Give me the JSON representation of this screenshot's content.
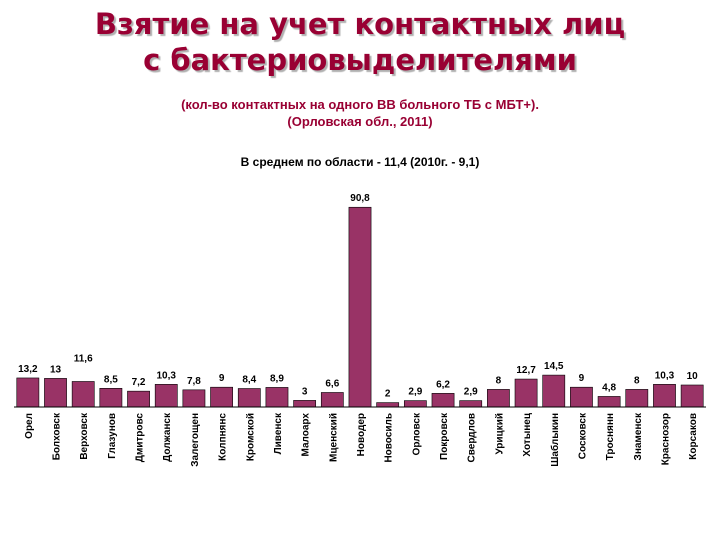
{
  "title_line1": "Взятие на учет контактных лиц",
  "title_line2": "с бактериовыделителями",
  "subtitle_line1": "(кол-во контактных на одного ВВ больного ТБ с МБТ+).",
  "subtitle_line2": "(Орловская обл., 2011)",
  "average_note": "В среднем по области - 11,4 (2010г. - 9,1)",
  "colors": {
    "bar": "#993366",
    "title": "#990033"
  },
  "chart_data": {
    "type": "bar",
    "categories": [
      "Орел",
      "Болховск",
      "Верховск",
      "Глазунов",
      "Дмитровс",
      "Должанск",
      "Залегощен",
      "Колпнянс",
      "Кромской",
      "Ливенск",
      "Малоарх",
      "Мценский",
      "Новодер",
      "Новосиль",
      "Орловск",
      "Покровск",
      "Свердлов",
      "Урицкий",
      "Хотынец",
      "Шаблыкин",
      "Сосковск",
      "Троснянн",
      "Знаменск",
      "Краснозор",
      "Корсаков"
    ],
    "values": [
      13.2,
      13,
      11.6,
      8.5,
      7.2,
      10.3,
      7.8,
      9,
      8.4,
      8.9,
      3,
      6.6,
      90.8,
      2,
      2.9,
      6.2,
      2.9,
      8,
      12.7,
      14.5,
      9,
      4.8,
      8,
      10.3,
      10
    ],
    "labels": [
      "13,2",
      "13",
      "11,6",
      "8,5",
      "7,2",
      "10,3",
      "7,8",
      "9",
      "8,4",
      "8,9",
      "3",
      "6,6",
      "90,8",
      "2",
      "2,9",
      "6,2",
      "2,9",
      "8",
      "12,7",
      "14,5",
      "9",
      "4,8",
      "8",
      "10,3",
      "10"
    ],
    "ylim": [
      0,
      100
    ],
    "grid": false,
    "legend": false
  }
}
